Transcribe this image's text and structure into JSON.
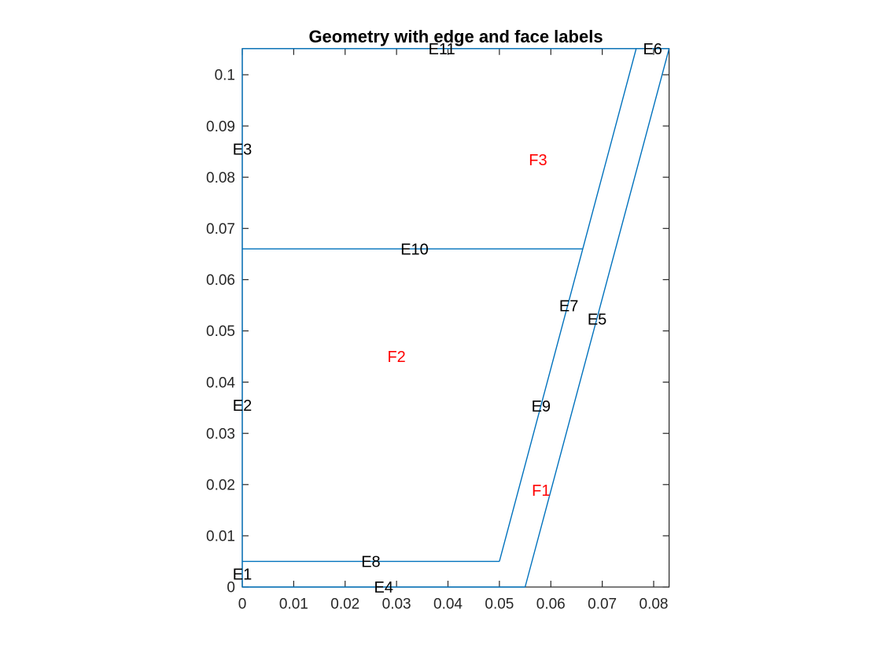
{
  "title": "Geometry with edge and face labels",
  "chart_data": {
    "type": "line",
    "title": "Geometry with edge and face labels",
    "xlabel": "",
    "ylabel": "",
    "grid": false,
    "legend": false,
    "xlim": [
      0,
      0.083
    ],
    "ylim": [
      0,
      0.1051
    ],
    "x_axis": {
      "values": [
        0,
        0.01,
        0.02,
        0.03,
        0.04,
        0.05,
        0.06,
        0.07,
        0.08
      ],
      "labels": [
        "0",
        "0.01",
        "0.02",
        "0.03",
        "0.04",
        "0.05",
        "0.06",
        "0.07",
        "0.08"
      ]
    },
    "y_axis": {
      "values": [
        0,
        0.01,
        0.02,
        0.03,
        0.04,
        0.05,
        0.06,
        0.07,
        0.08,
        0.09,
        0.1
      ],
      "labels": [
        "0",
        "0.01",
        "0.02",
        "0.03",
        "0.04",
        "0.05",
        "0.06",
        "0.07",
        "0.08",
        "0.09",
        "0.1"
      ]
    },
    "segments": [
      {
        "name": "bottom-edge",
        "points": [
          [
            0,
            0
          ],
          [
            0.055,
            0
          ]
        ]
      },
      {
        "name": "outer-diagonal-right",
        "points": [
          [
            0.055,
            0
          ],
          [
            0.083,
            0.1051
          ]
        ]
      },
      {
        "name": "top-edge",
        "points": [
          [
            0,
            0.1051
          ],
          [
            0.083,
            0.1051
          ]
        ]
      },
      {
        "name": "left-edge",
        "points": [
          [
            0,
            0
          ],
          [
            0,
            0.1051
          ]
        ]
      },
      {
        "name": "inner-horizontal-lower",
        "points": [
          [
            0,
            0.005
          ],
          [
            0.05,
            0.005
          ]
        ]
      },
      {
        "name": "inner-diagonal",
        "points": [
          [
            0.05,
            0.005
          ],
          [
            0.0766,
            0.1051
          ]
        ]
      },
      {
        "name": "inner-horizontal-upper",
        "points": [
          [
            0,
            0.066
          ],
          [
            0.0662,
            0.066
          ]
        ]
      }
    ],
    "edge_labels": [
      {
        "text": "E1",
        "x": 0,
        "y": 0.0025
      },
      {
        "text": "E2",
        "x": 0,
        "y": 0.0355
      },
      {
        "text": "E3",
        "x": 0,
        "y": 0.0855
      },
      {
        "text": "E4",
        "x": 0.0275,
        "y": 0
      },
      {
        "text": "E5",
        "x": 0.069,
        "y": 0.0523
      },
      {
        "text": "E6",
        "x": 0.0798,
        "y": 0.1051
      },
      {
        "text": "E7",
        "x": 0.0635,
        "y": 0.0549
      },
      {
        "text": "E8",
        "x": 0.025,
        "y": 0.005
      },
      {
        "text": "E9",
        "x": 0.0581,
        "y": 0.0353
      },
      {
        "text": "E10",
        "x": 0.0335,
        "y": 0.066
      },
      {
        "text": "E11",
        "x": 0.0388,
        "y": 0.1051
      }
    ],
    "face_labels": [
      {
        "text": "F1",
        "x": 0.0581,
        "y": 0.0189
      },
      {
        "text": "F2",
        "x": 0.03,
        "y": 0.045
      },
      {
        "text": "F3",
        "x": 0.0575,
        "y": 0.0834
      }
    ],
    "colors": {
      "geometry_line": "#0072BD",
      "edge_label": "#000000",
      "face_label": "#FF0000",
      "axis": "#262626",
      "tick_label": "#262626",
      "background": "#FFFFFF"
    }
  }
}
